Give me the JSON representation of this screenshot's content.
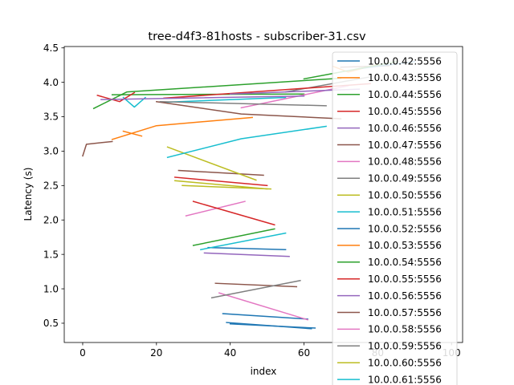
{
  "chart_data": {
    "type": "line",
    "title": "tree-d4f3-81hosts - subscriber-31.csv",
    "xlabel": "index",
    "ylabel": "Latency (s)",
    "xlim": [
      -5,
      103
    ],
    "ylim": [
      0.22,
      4.52
    ],
    "xticks": [
      0,
      20,
      40,
      60,
      80,
      100
    ],
    "yticks": [
      0.5,
      1.0,
      1.5,
      2.0,
      2.5,
      3.0,
      3.5,
      4.0,
      4.5
    ],
    "grid": false,
    "legend_position": "right, overlapping plot",
    "series": [
      {
        "name": "10.0.0.42:5556",
        "color": "#1f77b4",
        "x": [
          39,
          62
        ],
        "y": [
          0.51,
          0.42
        ]
      },
      {
        "name": "10.0.0.43:5556",
        "color": "#ff7f0e",
        "x": [
          8,
          20,
          46
        ],
        "y": [
          3.17,
          3.37,
          3.49
        ]
      },
      {
        "name": "10.0.0.44:5556",
        "color": "#2ca02c",
        "x": [
          3,
          12,
          70
        ],
        "y": [
          3.62,
          3.86,
          4.06
        ]
      },
      {
        "name": "10.0.0.45:5556",
        "color": "#d62728",
        "x": [
          4,
          10,
          14
        ],
        "y": [
          3.81,
          3.72,
          3.85
        ]
      },
      {
        "name": "10.0.0.46:5556",
        "color": "#9467bd",
        "x": [
          5,
          60
        ],
        "y": [
          3.75,
          3.8
        ]
      },
      {
        "name": "10.0.0.47:5556",
        "color": "#8c564b",
        "x": [
          0,
          1,
          8
        ],
        "y": [
          2.93,
          3.1,
          3.14
        ]
      },
      {
        "name": "10.0.0.48:5556",
        "color": "#e377c2",
        "x": [
          28,
          44
        ],
        "y": [
          2.06,
          2.27
        ]
      },
      {
        "name": "10.0.0.49:5556",
        "color": "#7f7f7f",
        "x": [
          21,
          66
        ],
        "y": [
          3.72,
          3.66
        ]
      },
      {
        "name": "10.0.0.50:5556",
        "color": "#bcbd22",
        "x": [
          23,
          47
        ],
        "y": [
          3.06,
          2.58
        ]
      },
      {
        "name": "10.0.0.51:5556",
        "color": "#17becf",
        "x": [
          23,
          43,
          66
        ],
        "y": [
          2.91,
          3.18,
          3.36
        ]
      },
      {
        "name": "10.0.0.52:5556",
        "color": "#1f77b4",
        "x": [
          40,
          63
        ],
        "y": [
          0.49,
          0.43
        ]
      },
      {
        "name": "10.0.0.53:5556",
        "color": "#ff7f0e",
        "x": [
          11,
          16
        ],
        "y": [
          3.29,
          3.22
        ]
      },
      {
        "name": "10.0.0.54:5556",
        "color": "#2ca02c",
        "x": [
          30,
          52
        ],
        "y": [
          1.63,
          1.87
        ]
      },
      {
        "name": "10.0.0.55:5556",
        "color": "#d62728",
        "x": [
          30,
          52
        ],
        "y": [
          2.27,
          1.93
        ]
      },
      {
        "name": "10.0.0.56:5556",
        "color": "#9467bd",
        "x": [
          33,
          56
        ],
        "y": [
          1.52,
          1.47
        ]
      },
      {
        "name": "10.0.0.57:5556",
        "color": "#8c564b",
        "x": [
          36,
          58
        ],
        "y": [
          1.08,
          1.03
        ]
      },
      {
        "name": "10.0.0.58:5556",
        "color": "#e377c2",
        "x": [
          37,
          61
        ],
        "y": [
          0.94,
          0.55
        ]
      },
      {
        "name": "10.0.0.59:5556",
        "color": "#7f7f7f",
        "x": [
          35,
          59
        ],
        "y": [
          0.87,
          1.12
        ]
      },
      {
        "name": "10.0.0.60:5556",
        "color": "#bcbd22",
        "x": [
          27,
          51
        ],
        "y": [
          2.5,
          2.45
        ]
      },
      {
        "name": "10.0.0.61:5556",
        "color": "#17becf",
        "x": [
          32,
          55
        ],
        "y": [
          1.57,
          1.81
        ]
      }
    ],
    "extra_lines": [
      {
        "color": "#1f77b4",
        "x": [
          38,
          61
        ],
        "y": [
          0.64,
          0.56
        ]
      },
      {
        "color": "#1f77b4",
        "x": [
          34,
          55
        ],
        "y": [
          1.6,
          1.57
        ]
      },
      {
        "color": "#8c564b",
        "x": [
          26,
          49
        ],
        "y": [
          2.72,
          2.65
        ]
      },
      {
        "color": "#d62728",
        "x": [
          25,
          50
        ],
        "y": [
          2.62,
          2.5
        ]
      },
      {
        "color": "#bcbd22",
        "x": [
          25,
          50
        ],
        "y": [
          2.57,
          2.45
        ]
      },
      {
        "color": "#17becf",
        "x": [
          11,
          14,
          17
        ],
        "y": [
          3.78,
          3.64,
          3.78
        ]
      },
      {
        "color": "#17becf",
        "x": [
          22,
          55
        ],
        "y": [
          3.71,
          3.78
        ]
      },
      {
        "color": "#2ca02c",
        "x": [
          8,
          60
        ],
        "y": [
          3.82,
          3.83
        ]
      },
      {
        "color": "#8c564b",
        "x": [
          20,
          43,
          70
        ],
        "y": [
          3.72,
          3.54,
          3.47
        ]
      },
      {
        "color": "#e377c2",
        "x": [
          43,
          72
        ],
        "y": [
          3.63,
          3.95
        ]
      },
      {
        "color": "#7f7f7f",
        "x": [
          55,
          78
        ],
        "y": [
          3.86,
          4.08
        ]
      },
      {
        "color": "#d62728",
        "x": [
          22,
          78
        ],
        "y": [
          3.77,
          3.98
        ]
      },
      {
        "color": "#ff7f0e",
        "x": [
          68,
          72,
          80
        ],
        "y": [
          4.23,
          4.15,
          4.26
        ]
      },
      {
        "color": "#8c564b",
        "x": [
          70,
          83
        ],
        "y": [
          4.22,
          4.24
        ]
      },
      {
        "color": "#1f77b4",
        "x": [
          75,
          90
        ],
        "y": [
          4.2,
          4.3
        ]
      },
      {
        "color": "#9467bd",
        "x": [
          40,
          75
        ],
        "y": [
          3.83,
          3.9
        ]
      },
      {
        "color": "#2ca02c",
        "x": [
          60,
          85
        ],
        "y": [
          4.05,
          4.3
        ]
      }
    ]
  }
}
